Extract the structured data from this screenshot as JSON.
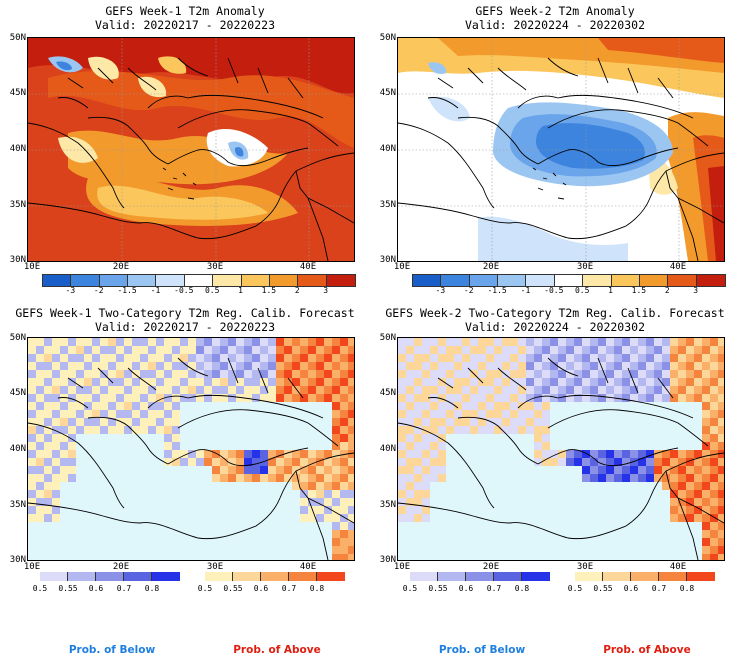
{
  "panels": [
    {
      "title": "GEFS Week-1 T2m Anomaly",
      "valid": "Valid: 20220217 - 20220223"
    },
    {
      "title": "GEFS Week-2 T2m Anomaly",
      "valid": "Valid: 20220224 - 20220302"
    },
    {
      "title": "GEFS Week-1 Two-Category T2m Reg. Calib. Forecast",
      "valid": "Valid: 20220217 - 20220223"
    },
    {
      "title": "GEFS Week-2 Two-Category T2m Reg. Calib. Forecast",
      "valid": "Valid: 20220224 - 20220302"
    }
  ],
  "axes": {
    "lat_labels": [
      "50N",
      "45N",
      "40N",
      "35N",
      "30N"
    ],
    "lon_labels": [
      "10E",
      "20E",
      "30E",
      "40E"
    ]
  },
  "anomaly_colorbar": {
    "ticks": [
      "-3",
      "-2",
      "-1.5",
      "-1",
      "-0.5",
      "0.5",
      "1",
      "1.5",
      "2",
      "3"
    ],
    "colors": [
      "#1a5fc9",
      "#3d84de",
      "#6aa4ea",
      "#9cc6f2",
      "#cfe4fa",
      "#ffffff",
      "#fde8a8",
      "#fbc75c",
      "#f39a2c",
      "#e55a18",
      "#c41e0e"
    ]
  },
  "prob_colorbar": {
    "below_ticks": [
      "0.5",
      "0.55",
      "0.6",
      "0.7",
      "0.8"
    ],
    "above_ticks": [
      "0.5",
      "0.55",
      "0.6",
      "0.7",
      "0.8"
    ],
    "below_colors": [
      "#dcdcf8",
      "#b4b8f0",
      "#8a91e6",
      "#5a63e0",
      "#2532e8"
    ],
    "above_colors": [
      "#fef0bb",
      "#fdd69a",
      "#fbb06a",
      "#f5843e",
      "#f2461c"
    ],
    "below_label": "Prob. of Below",
    "above_label": "Prob. of Above",
    "below_label_color": "#1f7fe0",
    "above_label_color": "#e01e10"
  },
  "ocean_color": "#dff6fb"
}
